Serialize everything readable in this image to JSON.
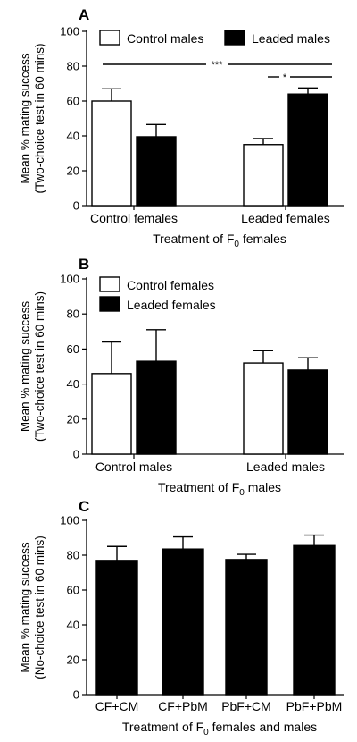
{
  "chart_data": [
    {
      "panel": "A",
      "type": "bar",
      "ylabel": [
        "Mean % mating success",
        "(Two-choice test in 60 mins)"
      ],
      "xlabel": "Treatment of F0 females",
      "xlabel_parts": {
        "pre": "Treatment of F",
        "sub": "0",
        "post": " females"
      },
      "ylim": [
        0,
        100
      ],
      "yticks": [
        "0",
        "20",
        "40",
        "60",
        "80",
        "100"
      ],
      "categories": [
        "Control females",
        "Leaded females"
      ],
      "legend": "top-left",
      "series": [
        {
          "name": "Control males",
          "fill": "#ffffff",
          "values": [
            60,
            35
          ],
          "errors": [
            7,
            3.5
          ]
        },
        {
          "name": "Leaded males",
          "fill": "#000000",
          "values": [
            39.5,
            64
          ],
          "errors": [
            7,
            3.5
          ]
        }
      ],
      "annotations": [
        {
          "label": "***",
          "y": 82
        },
        {
          "label": "*",
          "y": 73
        }
      ]
    },
    {
      "panel": "B",
      "type": "bar",
      "ylabel": [
        "Mean % mating success",
        "(Two-choice test in 60 mins)"
      ],
      "xlabel": "Treatment of F0 males",
      "xlabel_parts": {
        "pre": "Treatment of F",
        "sub": "0",
        "post": " males"
      },
      "ylim": [
        0,
        100
      ],
      "yticks": [
        "0",
        "20",
        "40",
        "60",
        "80",
        "100"
      ],
      "categories": [
        "Control males",
        "Leaded males"
      ],
      "legend": "top-left",
      "series": [
        {
          "name": "Control females",
          "fill": "#ffffff",
          "values": [
            46,
            52
          ],
          "errors": [
            18,
            7
          ]
        },
        {
          "name": "Leaded females",
          "fill": "#000000",
          "values": [
            53,
            48
          ],
          "errors": [
            18,
            7
          ]
        }
      ]
    },
    {
      "panel": "C",
      "type": "bar",
      "ylabel": [
        "Mean % mating success",
        "(No-choice test in 60 mins)"
      ],
      "xlabel": "Treatment of F0 females and males",
      "xlabel_parts": {
        "pre": "Treatment of F",
        "sub": "0",
        "post": " females and males"
      },
      "ylim": [
        0,
        100
      ],
      "yticks": [
        "0",
        "20",
        "40",
        "60",
        "80",
        "100"
      ],
      "categories": [
        "CF+CM",
        "CF+PbM",
        "PbF+CM",
        "PbF+PbM"
      ],
      "series": [
        {
          "fill": "#000000",
          "values": [
            77,
            83.5,
            77.5,
            85.5
          ],
          "errors": [
            8,
            7,
            3,
            6
          ]
        }
      ]
    }
  ]
}
